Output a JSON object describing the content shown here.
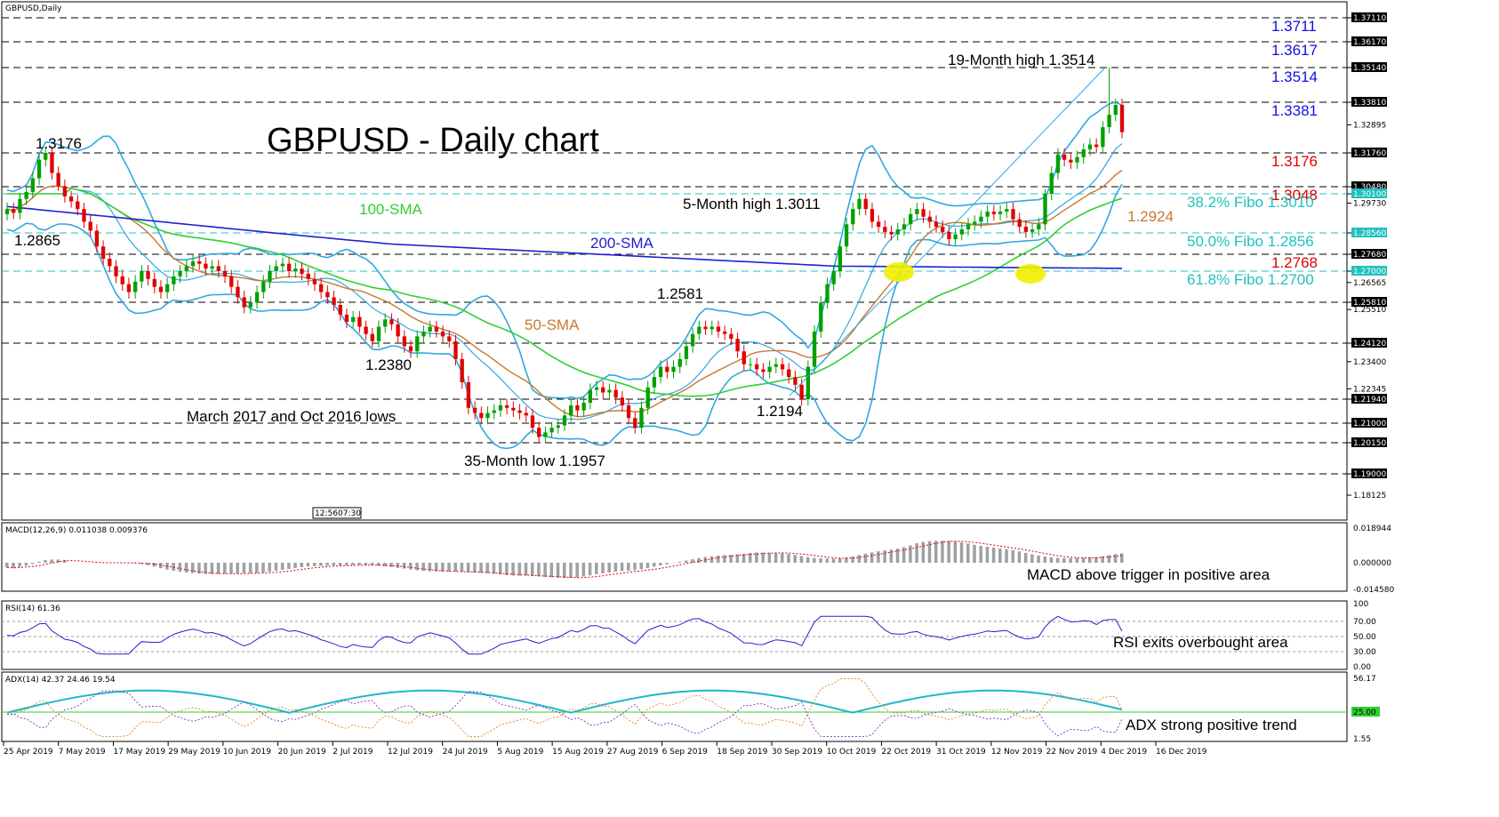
{
  "window_label": "GBPUSD,Daily",
  "chart_data": {
    "type": "candlestick",
    "title": "GBPUSD - Daily chart",
    "x_labels": [
      "25 Apr 2019",
      "7 May 2019",
      "17 May 2019",
      "29 May 2019",
      "10 Jun 2019",
      "20 Jun 2019",
      "2 Jul 2019",
      "12 Jul 2019",
      "24 Jul 2019",
      "5 Aug 2019",
      "15 Aug 2019",
      "27 Aug 2019",
      "6 Sep 2019",
      "18 Sep 2019",
      "30 Sep 2019",
      "10 Oct 2019",
      "22 Oct 2019",
      "31 Oct 2019",
      "12 Nov 2019",
      "22 Nov 2019",
      "4 Dec 2019",
      "16 Dec 2019"
    ],
    "y_ticks": [
      "1.37110",
      "1.36170",
      "1.35140",
      "1.33810",
      "1.32895",
      "1.31760",
      "1.30480",
      "1.30100",
      "1.29730",
      "1.28560",
      "1.27680",
      "1.27000",
      "1.26565",
      "1.25810",
      "1.25510",
      "1.24120",
      "1.23400",
      "1.22345",
      "1.21940",
      "1.21000",
      "1.20150",
      "1.19000",
      "1.18125"
    ],
    "ylim": [
      1.176,
      1.377
    ],
    "crosshair_labels": [
      "12:56",
      "07:30"
    ],
    "close": [
      1.295,
      1.2935,
      1.299,
      1.302,
      1.308,
      1.315,
      1.3176,
      1.31,
      1.305,
      1.3,
      1.298,
      1.295,
      1.29,
      1.2865,
      1.28,
      1.275,
      1.272,
      1.268,
      1.265,
      1.262,
      1.266,
      1.27,
      1.267,
      1.264,
      1.262,
      1.265,
      1.268,
      1.27,
      1.272,
      1.274,
      1.273,
      1.271,
      1.272,
      1.27,
      1.268,
      1.264,
      1.26,
      1.256,
      1.258,
      1.262,
      1.266,
      1.27,
      1.272,
      1.273,
      1.27,
      1.271,
      1.269,
      1.267,
      1.265,
      1.262,
      1.26,
      1.257,
      1.253,
      1.25,
      1.252,
      1.248,
      1.245,
      1.242,
      1.248,
      1.251,
      1.249,
      1.244,
      1.24,
      1.238,
      1.244,
      1.246,
      1.248,
      1.246,
      1.244,
      1.242,
      1.235,
      1.226,
      1.216,
      1.214,
      1.212,
      1.214,
      1.215,
      1.217,
      1.216,
      1.215,
      1.214,
      1.213,
      1.208,
      1.204,
      1.206,
      1.208,
      1.209,
      1.213,
      1.217,
      1.215,
      1.218,
      1.223,
      1.224,
      1.222,
      1.223,
      1.22,
      1.217,
      1.212,
      1.208,
      1.216,
      1.224,
      1.228,
      1.232,
      1.23,
      1.232,
      1.235,
      1.24,
      1.245,
      1.248,
      1.247,
      1.248,
      1.246,
      1.245,
      1.243,
      1.238,
      1.233,
      1.233,
      1.231,
      1.23,
      1.232,
      1.233,
      1.231,
      1.228,
      1.225,
      1.2194,
      1.232,
      1.246,
      1.258,
      1.265,
      1.27,
      1.28,
      1.289,
      1.295,
      1.299,
      1.295,
      1.29,
      1.288,
      1.286,
      1.285,
      1.287,
      1.289,
      1.293,
      1.295,
      1.292,
      1.29,
      1.288,
      1.286,
      1.283,
      1.285,
      1.287,
      1.289,
      1.29,
      1.292,
      1.294,
      1.293,
      1.294,
      1.295,
      1.291,
      1.288,
      1.286,
      1.287,
      1.289,
      1.301,
      1.31,
      1.317,
      1.315,
      1.314,
      1.316,
      1.319,
      1.321,
      1.32,
      1.328,
      1.333,
      1.337,
      1.326
    ],
    "annotations": {
      "high_19m": "19-Month high 1.3514",
      "high_5m": "5-Month high 1.3011",
      "low_35m": "35-Month low 1.1957",
      "lows_text": "March 2017 and Oct 2016 lows",
      "lbl_13176": "1.3176",
      "lbl_12865": "1.2865",
      "lbl_12380": "1.2380",
      "lbl_12581": "1.2581",
      "lbl_12194": "1.2194",
      "lbl_12924": "1.2924",
      "sma100": "100-SMA",
      "sma200": "200-SMA",
      "sma50": "50-SMA"
    },
    "right_levels": [
      {
        "text": "1.3711",
        "color": "#1010e0",
        "value": 1.3711
      },
      {
        "text": "1.3617",
        "color": "#1010e0",
        "value": 1.3617
      },
      {
        "text": "1.3514",
        "color": "#1010e0",
        "value": 1.3514
      },
      {
        "text": "1.3381",
        "color": "#1010e0",
        "value": 1.3381
      },
      {
        "text": "1.3176",
        "color": "#e00000",
        "value": 1.3176
      },
      {
        "text": "1.3048",
        "color": "#e00000",
        "value": 1.3048
      },
      {
        "text": "38.2% Fibo 1.3010",
        "color": "#20c0c0",
        "value": 1.301
      },
      {
        "text": "50.0% Fibo 1.2856",
        "color": "#20c0c0",
        "value": 1.2856
      },
      {
        "text": "1.2768",
        "color": "#e00000",
        "value": 1.2768
      },
      {
        "text": "61.8% Fibo 1.2700",
        "color": "#20c0c0",
        "value": 1.27
      }
    ],
    "colors": {
      "up": "#00a000",
      "down": "#e00000",
      "bb": "#30a8e0",
      "sma50": "#c87830",
      "sma100": "#30d030",
      "sma200": "#2020d0",
      "fibo": "#20c0c0"
    },
    "macd": {
      "title": "MACD(12,26,9) 0.011038 0.009376",
      "ticks": [
        "0.018944",
        "0.000000",
        "-0.014580"
      ],
      "note": "MACD above trigger in positive area"
    },
    "rsi": {
      "title": "RSI(14) 61.36",
      "ticks": [
        "100",
        "70.00",
        "50.00",
        "30.00",
        "0.00"
      ],
      "note": "RSI exits overbought area"
    },
    "adx": {
      "title": "ADX(14) 42.37 24.46 19.54",
      "ticks": [
        "56.17",
        "25.00",
        "1.55"
      ],
      "note": "ADX strong positive trend"
    }
  }
}
